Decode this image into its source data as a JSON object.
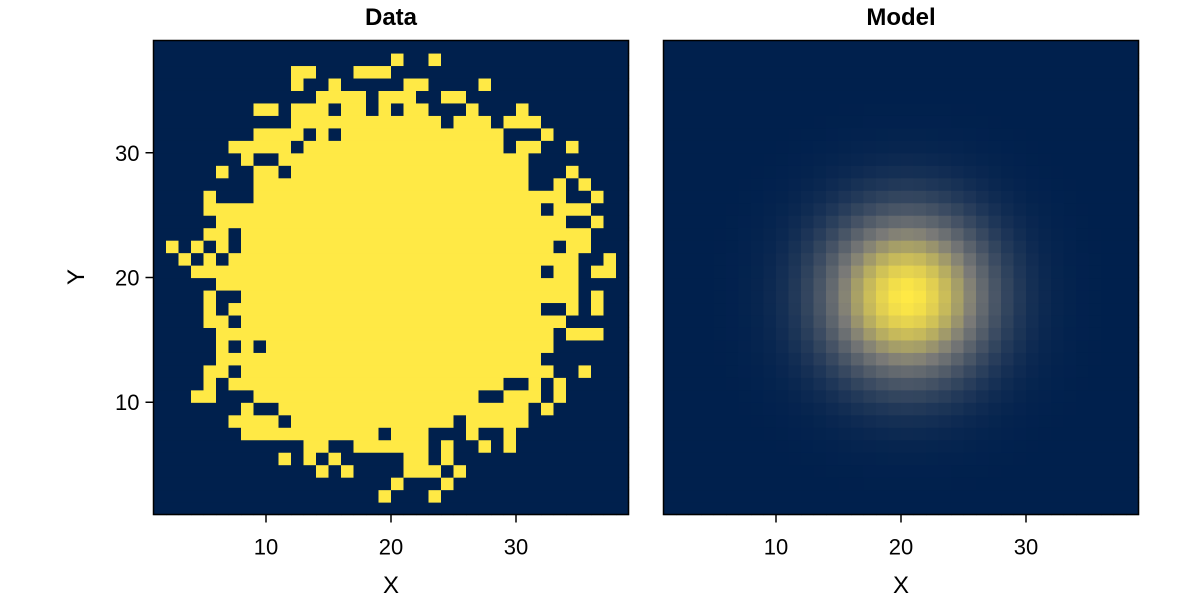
{
  "chart_data": [
    {
      "type": "heatmap",
      "title": "Data",
      "xlabel": "X",
      "ylabel": "Y",
      "xlim": [
        1,
        39
      ],
      "ylim": [
        1,
        39
      ],
      "xticks": [
        10,
        20,
        30
      ],
      "yticks": [
        10,
        20,
        30
      ],
      "grid": false,
      "colormap": "cividis",
      "value_range": [
        0,
        1
      ],
      "binary": true,
      "center": [
        20,
        20
      ],
      "radius": 15
    },
    {
      "type": "heatmap",
      "title": "Model",
      "xlabel": "X",
      "ylabel": "",
      "xlim": [
        1,
        39
      ],
      "ylim": [
        1,
        39
      ],
      "xticks": [
        10,
        20,
        30
      ],
      "yticks": [],
      "grid": false,
      "colormap": "cividis",
      "value_range": [
        0,
        1
      ],
      "model": "gaussian",
      "center": [
        20.5,
        18.5
      ],
      "sigma": 4.5
    }
  ],
  "colors": {
    "low": "#00204d",
    "mid": "#7c7b78",
    "high": "#ffe945"
  }
}
